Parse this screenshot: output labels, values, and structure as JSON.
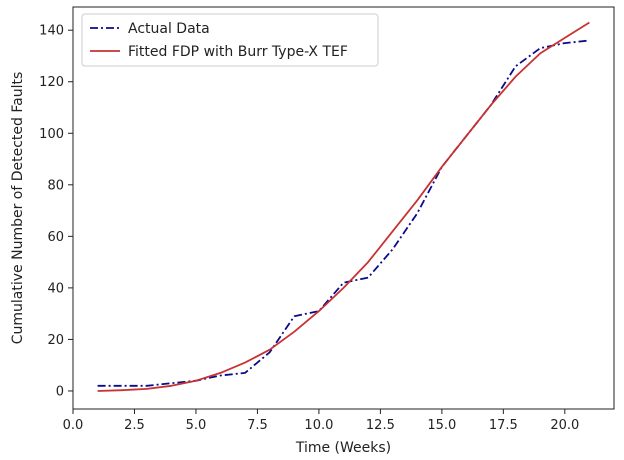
{
  "chart_data": {
    "type": "line",
    "xlabel": "Time (Weeks)",
    "ylabel": "Cumulative Number of Detected Faults",
    "xlim": [
      0,
      22
    ],
    "ylim": [
      -7,
      149
    ],
    "xticks": [
      "0.0",
      "2.5",
      "5.0",
      "7.5",
      "10.0",
      "12.5",
      "15.0",
      "17.5",
      "20.0"
    ],
    "yticks": [
      "0",
      "20",
      "40",
      "60",
      "80",
      "100",
      "120",
      "140"
    ],
    "grid": false,
    "legend_position": "top-left",
    "series": [
      {
        "name": "Actual Data",
        "style": "dash-dot",
        "color": "#0a0a8c",
        "x": [
          1,
          2,
          3,
          4,
          5,
          6,
          7,
          8,
          9,
          10,
          11,
          12,
          13,
          14,
          15,
          16,
          17,
          18,
          19,
          20,
          21
        ],
        "y": [
          2,
          2,
          2,
          3,
          4,
          6,
          7,
          15,
          29,
          31,
          42,
          44,
          55,
          69,
          87,
          99,
          111,
          126,
          133,
          135,
          136
        ]
      },
      {
        "name": "Fitted FDP with Burr Type-X TEF",
        "style": "solid",
        "color": "#c83232",
        "x": [
          1,
          2,
          3,
          4,
          5,
          6,
          7,
          8,
          9,
          10,
          11,
          12,
          13,
          14,
          15,
          16,
          17,
          18,
          19,
          20,
          21
        ],
        "y": [
          0,
          0.3,
          0.8,
          2,
          4,
          7,
          11,
          16,
          23,
          31,
          40,
          50,
          62,
          74,
          87,
          99,
          111,
          122,
          131,
          137,
          143
        ]
      }
    ]
  }
}
